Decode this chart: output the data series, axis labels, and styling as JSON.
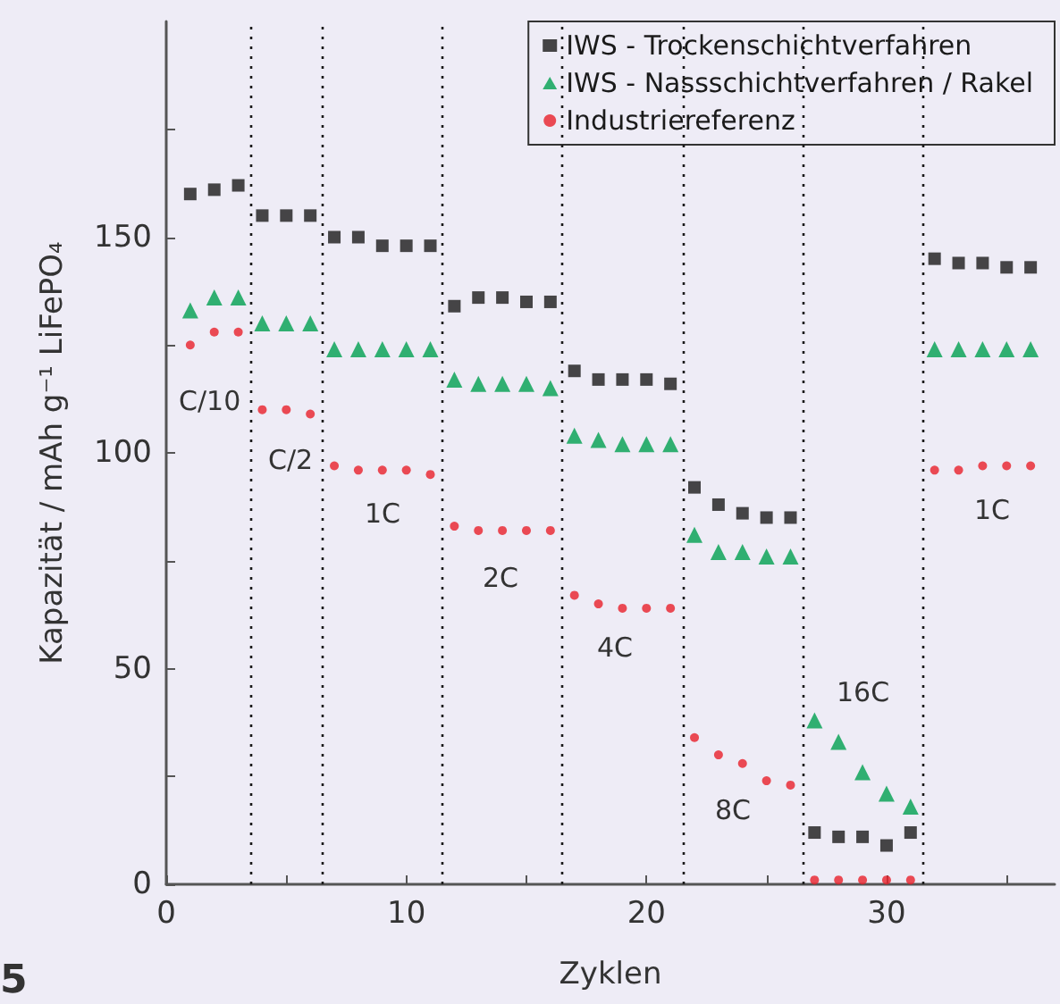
{
  "chart_data": {
    "type": "scatter",
    "xlabel": "Zyklen",
    "ylabel": "Kapazität / mAh g⁻¹ LiFePO₄",
    "x": [
      1,
      2,
      3,
      4,
      5,
      6,
      7,
      8,
      9,
      10,
      11,
      12,
      13,
      14,
      15,
      16,
      17,
      18,
      19,
      20,
      21,
      22,
      23,
      24,
      25,
      26,
      27,
      28,
      29,
      30,
      31,
      32,
      33,
      34,
      35,
      36
    ],
    "series": [
      {
        "name": "IWS - Trockenschichtverfahren",
        "color": "#1a1a1a",
        "marker": "square",
        "values": [
          160,
          161,
          162,
          155,
          155,
          155,
          150,
          150,
          148,
          148,
          148,
          134,
          136,
          136,
          135,
          135,
          119,
          117,
          117,
          117,
          116,
          92,
          88,
          86,
          85,
          85,
          12,
          11,
          11,
          9,
          12,
          145,
          144,
          144,
          143,
          143
        ]
      },
      {
        "name": "IWS - Nassschichtverfahren / Rakel",
        "color": "#00a050",
        "marker": "triangle",
        "values": [
          133,
          136,
          136,
          130,
          130,
          130,
          124,
          124,
          124,
          124,
          124,
          117,
          116,
          116,
          116,
          115,
          104,
          103,
          102,
          102,
          102,
          81,
          77,
          77,
          76,
          76,
          38,
          33,
          26,
          21,
          18,
          124,
          124,
          124,
          124,
          124
        ]
      },
      {
        "name": "Industriereferenz",
        "color": "#e8202a",
        "marker": "circle",
        "values": [
          125,
          128,
          128,
          110,
          110,
          109,
          97,
          96,
          96,
          96,
          95,
          83,
          82,
          82,
          82,
          82,
          67,
          65,
          64,
          64,
          64,
          34,
          30,
          28,
          24,
          23,
          1,
          1,
          1,
          1,
          1,
          96,
          96,
          97,
          97,
          97
        ]
      }
    ],
    "xlim": [
      0,
      37
    ],
    "xticks": [
      0,
      {
        "value": 5,
        "label": null
      },
      10,
      {
        "value": 15,
        "label": null
      },
      20,
      {
        "value": 25,
        "label": null
      },
      30,
      {
        "value": 35,
        "label": null
      }
    ],
    "ylim": [
      0,
      200
    ],
    "yticks": [
      0,
      {
        "value": 25,
        "label": null
      },
      50,
      {
        "value": 75,
        "label": null
      },
      100,
      {
        "value": 125,
        "label": null
      },
      150,
      {
        "value": 175,
        "label": null
      }
    ],
    "ref_lines": [
      {
        "axis": "x",
        "value": 3.5,
        "color": "#1a1a1a",
        "line_style": "dotted"
      },
      {
        "axis": "x",
        "value": 6.5,
        "color": "#1a1a1a",
        "line_style": "dotted"
      },
      {
        "axis": "x",
        "value": 11.5,
        "color": "#1a1a1a",
        "line_style": "dotted"
      },
      {
        "axis": "x",
        "value": 16.5,
        "color": "#1a1a1a",
        "line_style": "dotted"
      },
      {
        "axis": "x",
        "value": 21.5,
        "color": "#1a1a1a",
        "line_style": "dotted"
      },
      {
        "axis": "x",
        "value": 26.5,
        "color": "#1a1a1a",
        "line_style": "dotted"
      },
      {
        "axis": "x",
        "value": 31.5,
        "color": "#1a1a1a",
        "line_style": "dotted"
      }
    ],
    "annotations": [
      "C/10",
      "C/2",
      "1C",
      "2C",
      "4C",
      "8C",
      "16C",
      "1C",
      "5"
    ],
    "legend": "top right",
    "grid": false
  }
}
